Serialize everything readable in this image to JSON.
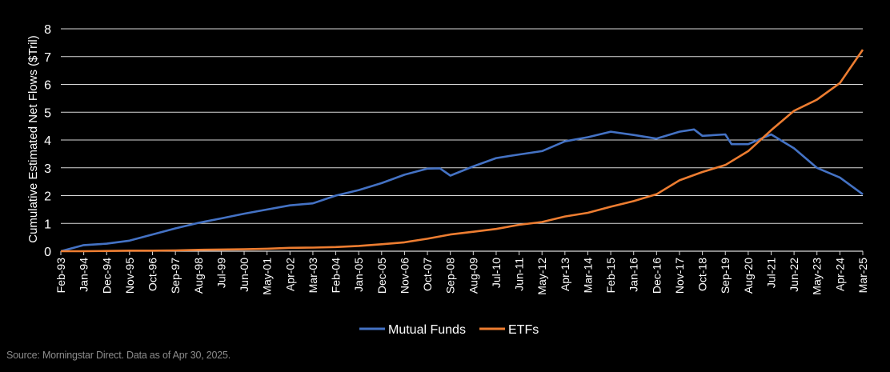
{
  "source_note": "Source: Morningstar Direct. Data as of Apr 30, 2025.",
  "colors": {
    "background": "#000000",
    "grid": "#d9d9d9",
    "mutual_funds": "#4472c4",
    "etfs": "#ed7d31",
    "text": "#ffffff",
    "source": "#8c8c8c"
  },
  "chart_data": {
    "type": "line",
    "title": "",
    "ylabel": "Cumulative Estimated Net Flows ($Tril)",
    "xlabel": "",
    "ylim": [
      0,
      8
    ],
    "yticks": [
      0,
      1,
      2,
      3,
      4,
      5,
      6,
      7,
      8
    ],
    "grid": true,
    "legend": "bottom",
    "x_start": "Feb-93",
    "x_end": "Mar-25",
    "xticks": [
      "Feb-93",
      "Jan-94",
      "Dec-94",
      "Nov-95",
      "Oct-96",
      "Sep-97",
      "Aug-98",
      "Jul-99",
      "Jun-00",
      "May-01",
      "Apr-02",
      "Mar-03",
      "Feb-04",
      "Jan-05",
      "Dec-05",
      "Nov-06",
      "Oct-07",
      "Sep-08",
      "Aug-09",
      "Jul-10",
      "Jun-11",
      "May-12",
      "Apr-13",
      "Mar-14",
      "Feb-15",
      "Jan-16",
      "Dec-16",
      "Nov-17",
      "Oct-18",
      "Sep-19",
      "Aug-20",
      "Jul-21",
      "Jun-22",
      "May-23",
      "Apr-24",
      "Mar-25"
    ],
    "series": [
      {
        "name": "Mutual Funds",
        "color": "#4472c4",
        "points": [
          [
            "Feb-93",
            0.0
          ],
          [
            "Jan-94",
            0.22
          ],
          [
            "Dec-94",
            0.27
          ],
          [
            "Nov-95",
            0.38
          ],
          [
            "Oct-96",
            0.6
          ],
          [
            "Sep-97",
            0.82
          ],
          [
            "Aug-98",
            1.02
          ],
          [
            "Jul-99",
            1.18
          ],
          [
            "Jun-00",
            1.35
          ],
          [
            "May-01",
            1.5
          ],
          [
            "Apr-02",
            1.65
          ],
          [
            "Mar-03",
            1.72
          ],
          [
            "Feb-04",
            2.0
          ],
          [
            "Jan-05",
            2.2
          ],
          [
            "Dec-05",
            2.45
          ],
          [
            "Nov-06",
            2.75
          ],
          [
            "Oct-07",
            2.97
          ],
          [
            "Apr-08",
            2.98
          ],
          [
            "Sep-08",
            2.72
          ],
          [
            "Aug-09",
            3.05
          ],
          [
            "Jul-10",
            3.35
          ],
          [
            "Jun-11",
            3.48
          ],
          [
            "May-12",
            3.6
          ],
          [
            "Apr-13",
            3.95
          ],
          [
            "Mar-14",
            4.1
          ],
          [
            "Feb-15",
            4.3
          ],
          [
            "Jan-16",
            4.18
          ],
          [
            "Dec-16",
            4.05
          ],
          [
            "Nov-17",
            4.3
          ],
          [
            "Jun-18",
            4.38
          ],
          [
            "Oct-18",
            4.15
          ],
          [
            "Sep-19",
            4.2
          ],
          [
            "Dec-19",
            3.85
          ],
          [
            "Aug-20",
            3.85
          ],
          [
            "Jul-21",
            4.2
          ],
          [
            "Jun-22",
            3.7
          ],
          [
            "May-23",
            3.0
          ],
          [
            "Apr-24",
            2.65
          ],
          [
            "Mar-25",
            2.05
          ]
        ]
      },
      {
        "name": "ETFs",
        "color": "#ed7d31",
        "points": [
          [
            "Feb-93",
            0.0
          ],
          [
            "Jan-94",
            0.0
          ],
          [
            "Dec-94",
            0.01
          ],
          [
            "Nov-95",
            0.02
          ],
          [
            "Oct-96",
            0.02
          ],
          [
            "Sep-97",
            0.03
          ],
          [
            "Aug-98",
            0.05
          ],
          [
            "Jul-99",
            0.06
          ],
          [
            "Jun-00",
            0.07
          ],
          [
            "May-01",
            0.09
          ],
          [
            "Apr-02",
            0.12
          ],
          [
            "Mar-03",
            0.13
          ],
          [
            "Feb-04",
            0.15
          ],
          [
            "Jan-05",
            0.19
          ],
          [
            "Dec-05",
            0.25
          ],
          [
            "Nov-06",
            0.32
          ],
          [
            "Oct-07",
            0.45
          ],
          [
            "Sep-08",
            0.6
          ],
          [
            "Aug-09",
            0.7
          ],
          [
            "Jul-10",
            0.8
          ],
          [
            "Jun-11",
            0.95
          ],
          [
            "May-12",
            1.05
          ],
          [
            "Apr-13",
            1.25
          ],
          [
            "Mar-14",
            1.38
          ],
          [
            "Feb-15",
            1.6
          ],
          [
            "Jan-16",
            1.8
          ],
          [
            "Dec-16",
            2.05
          ],
          [
            "Nov-17",
            2.55
          ],
          [
            "Oct-18",
            2.85
          ],
          [
            "Sep-19",
            3.1
          ],
          [
            "Aug-20",
            3.6
          ],
          [
            "Jul-21",
            4.35
          ],
          [
            "Jun-22",
            5.05
          ],
          [
            "May-23",
            5.45
          ],
          [
            "Apr-24",
            6.05
          ],
          [
            "Mar-25",
            7.25
          ]
        ]
      }
    ]
  }
}
